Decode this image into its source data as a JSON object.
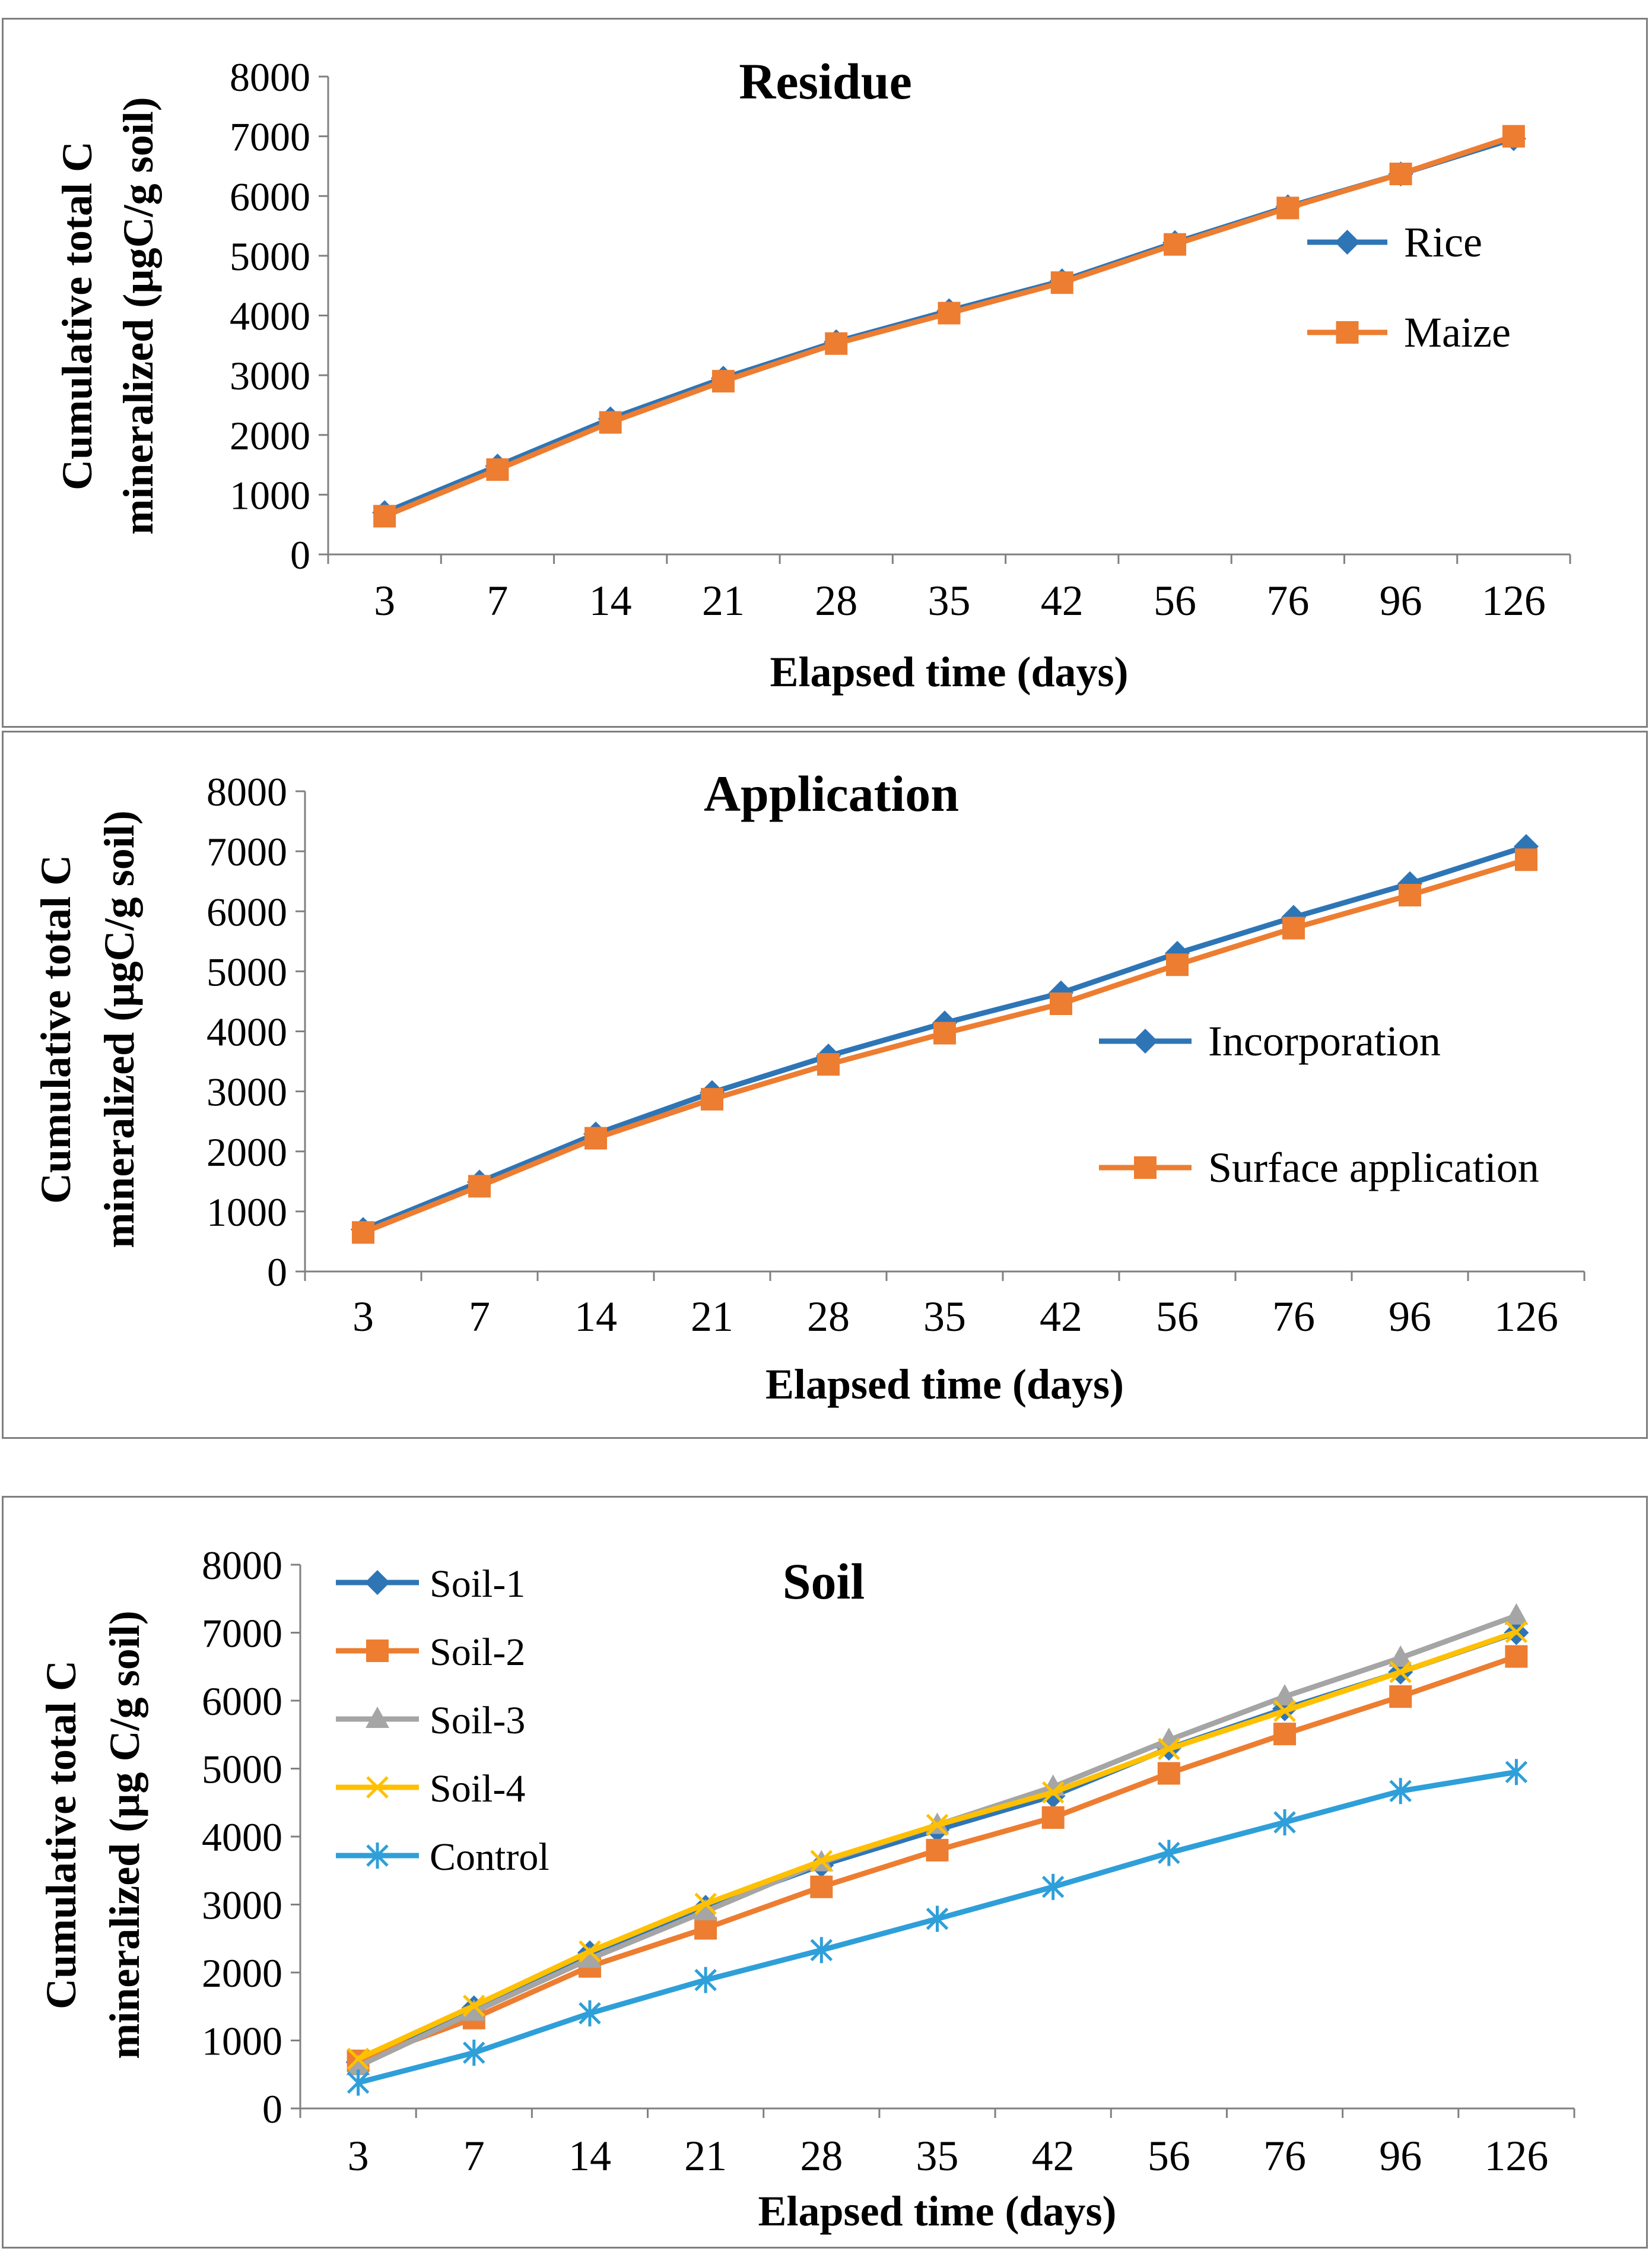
{
  "chart_data": [
    {
      "type": "line",
      "title": "Residue",
      "xlabel": "Elapsed time (days)",
      "ylabel": [
        "Cumulative total C",
        "mineralized (µgC/g soil)"
      ],
      "categories": [
        "3",
        "7",
        "14",
        "21",
        "28",
        "35",
        "42",
        "56",
        "76",
        "96",
        "126"
      ],
      "ylim": [
        0,
        8000
      ],
      "yticks": [
        "0",
        "1000",
        "2000",
        "3000",
        "4000",
        "5000",
        "6000",
        "7000",
        "8000"
      ],
      "legend_position": "right",
      "series": [
        {
          "name": "Rice",
          "marker": "diamond",
          "color": "#2e75b6",
          "values": [
            700,
            1480,
            2270,
            2950,
            3560,
            4080,
            4580,
            5220,
            5820,
            6370,
            6960
          ]
        },
        {
          "name": "Maize",
          "marker": "square",
          "color": "#ed7d31",
          "values": [
            640,
            1420,
            2210,
            2900,
            3530,
            4040,
            4550,
            5190,
            5800,
            6370,
            7000
          ]
        }
      ]
    },
    {
      "type": "line",
      "title": "Application",
      "xlabel": "Elapsed time (days)",
      "ylabel": [
        "Cumulative total C",
        "mineralized (µgC/g soil)"
      ],
      "categories": [
        "3",
        "7",
        "14",
        "21",
        "28",
        "35",
        "42",
        "56",
        "76",
        "96",
        "126"
      ],
      "ylim": [
        0,
        8000
      ],
      "yticks": [
        "0",
        "1000",
        "2000",
        "3000",
        "4000",
        "5000",
        "6000",
        "7000",
        "8000"
      ],
      "legend_position": "right",
      "series": [
        {
          "name": "Incorporation",
          "marker": "diamond",
          "color": "#2e75b6",
          "values": [
            700,
            1490,
            2290,
            2980,
            3590,
            4140,
            4640,
            5300,
            5900,
            6460,
            7080
          ]
        },
        {
          "name": "Surface application",
          "marker": "square",
          "color": "#ed7d31",
          "values": [
            650,
            1420,
            2220,
            2870,
            3450,
            3970,
            4460,
            5110,
            5720,
            6270,
            6860
          ]
        }
      ]
    },
    {
      "type": "line",
      "title": "Soil",
      "xlabel": "Elapsed time (days)",
      "ylabel": [
        "Cumulative total C",
        "mineralized (µg C/g soil)"
      ],
      "categories": [
        "3",
        "7",
        "14",
        "21",
        "28",
        "35",
        "42",
        "56",
        "76",
        "96",
        "126"
      ],
      "ylim": [
        0,
        8000
      ],
      "yticks": [
        "0",
        "1000",
        "2000",
        "3000",
        "4000",
        "5000",
        "6000",
        "7000",
        "8000"
      ],
      "legend_position": "top-left",
      "series": [
        {
          "name": "Soil-1",
          "marker": "diamond",
          "color": "#2e75b6",
          "values": [
            680,
            1480,
            2290,
            2960,
            3580,
            4100,
            4600,
            5300,
            5880,
            6420,
            7000
          ]
        },
        {
          "name": "Soil-2",
          "marker": "square",
          "color": "#ed7d31",
          "values": [
            700,
            1330,
            2090,
            2650,
            3260,
            3800,
            4280,
            4930,
            5510,
            6060,
            6650
          ]
        },
        {
          "name": "Soil-3",
          "marker": "triangle",
          "color": "#a5a5a5",
          "values": [
            620,
            1420,
            2200,
            2900,
            3620,
            4170,
            4730,
            5420,
            6060,
            6630,
            7250
          ]
        },
        {
          "name": "Soil-4",
          "marker": "x",
          "color": "#ffc000",
          "values": [
            730,
            1510,
            2310,
            3010,
            3640,
            4170,
            4650,
            5290,
            5850,
            6420,
            7010
          ]
        },
        {
          "name": "Control",
          "marker": "star",
          "color": "#2e9fd9",
          "values": [
            380,
            820,
            1400,
            1890,
            2330,
            2790,
            3260,
            3760,
            4210,
            4670,
            4950
          ]
        }
      ]
    }
  ]
}
